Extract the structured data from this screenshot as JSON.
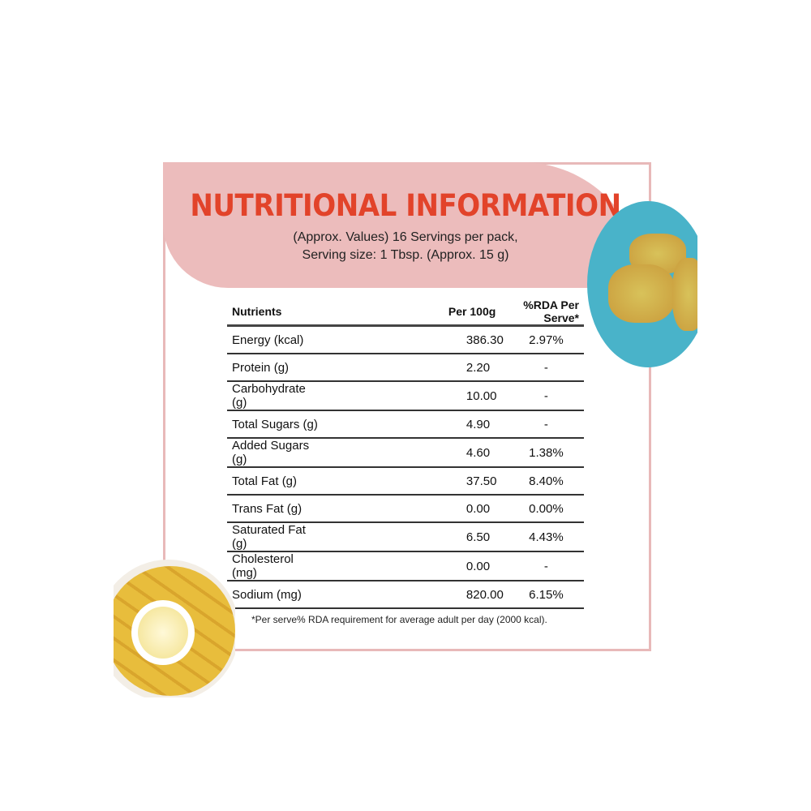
{
  "title": "NUTRITIONAL INFORMATION",
  "subtitle_line1": "(Approx. Values) 16 Servings per pack,",
  "subtitle_line2": "Serving size: 1 Tbsp. (Approx. 15 g)",
  "table": {
    "headers": [
      "Nutrients",
      "Per 100g",
      "%RDA Per Serve*"
    ],
    "rows": [
      [
        "Energy (kcal)",
        "386.30",
        "2.97%"
      ],
      [
        "Protein (g)",
        "2.20",
        "-"
      ],
      [
        "Carbohydrate (g)",
        "10.00",
        "-"
      ],
      [
        "Total Sugars (g)",
        "4.90",
        "-"
      ],
      [
        "Added Sugars (g)",
        "4.60",
        "1.38%"
      ],
      [
        "Total Fat (g)",
        "37.50",
        "8.40%"
      ],
      [
        "Trans Fat (g)",
        "0.00",
        "0.00%"
      ],
      [
        "Saturated Fat (g)",
        "6.50",
        "4.43%"
      ],
      [
        "Cholesterol (mg)",
        "0.00",
        "-"
      ],
      [
        "Sodium (mg)",
        "820.00",
        "6.15%"
      ]
    ]
  },
  "footnote": "*Per serve% RDA requirement for average adult per day (2000 kcal).",
  "colors": {
    "title": "#e2432a",
    "header_bg": "#ecbcbc",
    "border": "#e8b9b9"
  }
}
